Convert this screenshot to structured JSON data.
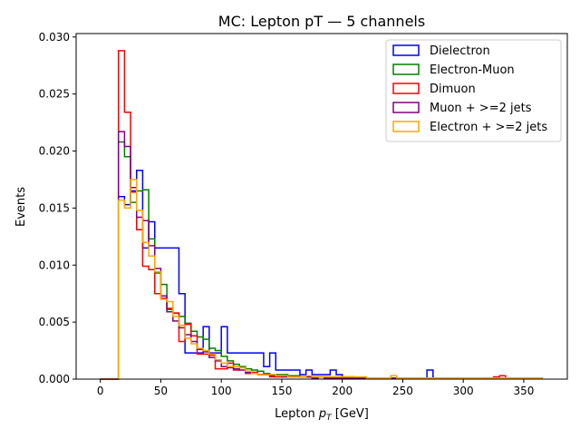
{
  "chart_data": {
    "type": "line",
    "style": "step-histogram",
    "title": "MC: Lepton pT — 5 channels",
    "xlabel_main": "Lepton ",
    "xlabel_p": "p",
    "xlabel_sub": "T",
    "xlabel_unit": " [GeV]",
    "ylabel": "Events",
    "xlim": [
      -20,
      386
    ],
    "ylim": [
      0,
      0.0303
    ],
    "xticks": [
      0,
      50,
      100,
      150,
      200,
      250,
      300,
      350
    ],
    "xtick_labels": [
      "0",
      "50",
      "100",
      "150",
      "200",
      "250",
      "300",
      "350"
    ],
    "yticks": [
      0,
      0.005,
      0.01,
      0.015,
      0.02,
      0.025,
      0.03
    ],
    "ytick_labels": [
      "0.000",
      "0.005",
      "0.010",
      "0.015",
      "0.020",
      "0.025",
      "0.030"
    ],
    "grid": false,
    "legend_position": "top-right",
    "bin_edges": [
      0,
      5,
      10,
      15,
      20,
      25,
      30,
      35,
      40,
      45,
      50,
      55,
      60,
      65,
      70,
      75,
      80,
      85,
      90,
      95,
      100,
      105,
      110,
      115,
      120,
      125,
      130,
      135,
      140,
      145,
      150,
      155,
      160,
      165,
      170,
      175,
      180,
      185,
      190,
      195,
      200,
      205,
      210,
      215,
      220,
      225,
      230,
      235,
      240,
      245,
      250,
      255,
      260,
      265,
      270,
      275,
      280,
      285,
      290,
      295,
      300,
      305,
      310,
      315,
      320,
      325,
      330,
      335,
      340,
      345,
      350,
      355,
      360,
      365
    ],
    "series": [
      {
        "name": "Dielectron",
        "color": "#0000ff",
        "values": [
          0,
          0,
          0,
          0.016,
          0.0153,
          0.0165,
          0.0183,
          0.0115,
          0.0138,
          0.0115,
          0.0115,
          0.0115,
          0.0115,
          0.0075,
          0.0023,
          0.0023,
          0.0023,
          0.0046,
          0.0023,
          0.0023,
          0.0046,
          0.0023,
          0.0023,
          0.0023,
          0.0023,
          0.0023,
          0.0023,
          0.0011,
          0.0023,
          0.0008,
          0.0008,
          0.0008,
          0.0008,
          0.0004,
          0.0008,
          0.0004,
          0.0004,
          0.0004,
          0.0008,
          0.0004,
          0.0001,
          0.0001,
          0.0001,
          0.0001,
          0.0001,
          0.0001,
          0.0001,
          0.0001,
          0.0001,
          0.0001,
          0.0001,
          0.0001,
          0.0001,
          0.0001,
          0.0008,
          0.0001,
          0.0001,
          0.0001,
          0.0001,
          0.0001,
          0.0001,
          0.0001,
          0.0001,
          0.0001,
          0.0001,
          0.0001,
          0.0001,
          0.0001,
          0.0001,
          0.0001,
          0.0001,
          0.0001,
          0.0001
        ]
      },
      {
        "name": "Electron-Muon",
        "color": "#008000",
        "values": [
          0,
          0,
          0,
          0.0208,
          0.0195,
          0.0155,
          0.0165,
          0.0166,
          0.0123,
          0.0093,
          0.0083,
          0.0061,
          0.0058,
          0.0055,
          0.0049,
          0.0042,
          0.0037,
          0.0035,
          0.0027,
          0.0025,
          0.002,
          0.0016,
          0.0013,
          0.0011,
          0.0009,
          0.0008,
          0.0007,
          0.0005,
          0.0004,
          0.0004,
          0.0004,
          0.0003,
          0.0003,
          0.0002,
          0.0002,
          0.0002,
          0.0002,
          0.0002,
          0.0002,
          0.0002,
          0.0002,
          0.0002,
          0.0001,
          0.0001,
          0.0001,
          0.0001,
          0.0001,
          0.0001,
          0.0001,
          0.0001,
          0.0001,
          0.0001,
          0.0001,
          0.0001,
          0.0001,
          0.0001,
          0.0001,
          0.0001,
          0.0001,
          0.0001,
          0.0001,
          0.0001,
          0.0001,
          0.0001,
          0.0001,
          0.0001,
          0.0001,
          0.0001,
          0.0001,
          0.0001,
          0.0001,
          0.0001,
          0.0001
        ]
      },
      {
        "name": "Dimuon",
        "color": "#ff0000",
        "values": [
          0,
          0,
          0,
          0.0288,
          0.0234,
          0.0164,
          0.0131,
          0.0099,
          0.0096,
          0.0075,
          0.0071,
          0.0062,
          0.0058,
          0.0033,
          0.0048,
          0.0038,
          0.0022,
          0.0022,
          0.0021,
          0.0009,
          0.0009,
          0.0014,
          0.0008,
          0.001,
          0.0005,
          0.0006,
          0.0004,
          0.0004,
          0.0002,
          0.0002,
          0.0003,
          0.0002,
          0.0002,
          0.0002,
          0.0002,
          0.0002,
          0.0002,
          0.0002,
          0.0001,
          0.0001,
          0.0001,
          0.0001,
          0.0001,
          0.0001,
          0.0001,
          0.0001,
          0.0001,
          0.0001,
          0.0001,
          0.0001,
          0.0001,
          0.0001,
          0.0001,
          0.0001,
          0.0001,
          0.0001,
          0.0001,
          0.0001,
          0.0001,
          0.0001,
          0.0001,
          0.0001,
          0.0001,
          0.0001,
          0.0001,
          0.0002,
          0.0003,
          0.0001,
          0.0001,
          0.0001,
          0.0001,
          0.0001,
          0.0001
        ]
      },
      {
        "name": "Muon + >=2 jets",
        "color": "#800080",
        "values": [
          0,
          0,
          0,
          0.0217,
          0.0204,
          0.0168,
          0.0142,
          0.0139,
          0.0117,
          0.0097,
          0.0073,
          0.0059,
          0.0051,
          0.0045,
          0.0039,
          0.0033,
          0.0026,
          0.0024,
          0.0019,
          0.0016,
          0.0011,
          0.001,
          0.0009,
          0.0008,
          0.0006,
          0.0005,
          0.0004,
          0.0004,
          0.0003,
          0.0003,
          0.0002,
          0.0002,
          0.0002,
          0.0002,
          0.0002,
          0.0001,
          0.0002,
          0.0001,
          0.0001,
          0.0001,
          0.0001,
          0.0001,
          0.0001,
          0.0001,
          0.0001,
          0.0001,
          0.0001,
          0.0001,
          0.0001,
          0.0001,
          0.0001,
          0.0001,
          0.0001,
          0.0001,
          0.0001,
          0.0001,
          0.0001,
          0.0001,
          0.0001,
          0.0001,
          0.0001,
          0.0001,
          0.0001,
          0.0001,
          0.0001,
          0.0001,
          0.0001,
          0.0001,
          0.0001,
          0.0001,
          0.0001,
          0.0001,
          0.0001
        ]
      },
      {
        "name": "Electron + >=2 jets",
        "color": "#ffa500",
        "values": [
          0,
          0,
          0,
          0.0157,
          0.015,
          0.0175,
          0.0148,
          0.012,
          0.0108,
          0.0094,
          0.007,
          0.0068,
          0.0055,
          0.0047,
          0.0036,
          0.0031,
          0.0027,
          0.0025,
          0.0022,
          0.0017,
          0.0014,
          0.0011,
          0.0011,
          0.001,
          0.0007,
          0.0005,
          0.0004,
          0.0004,
          0.0004,
          0.0003,
          0.0003,
          0.0002,
          0.0002,
          0.0002,
          0.0003,
          0.0002,
          0.0002,
          0.0002,
          0.0002,
          0.0002,
          0.0002,
          0.0002,
          0.0002,
          0.0002,
          0.0001,
          0.0001,
          0.0001,
          0.0001,
          0.0003,
          0.0001,
          0.0001,
          0.0001,
          0.0001,
          0.0001,
          0.0001,
          0.0001,
          0.0001,
          0.0001,
          0.0001,
          0.0001,
          0.0001,
          0.0001,
          0.0001,
          0.0001,
          0.0001,
          0.0001,
          0.0001,
          0.0001,
          0.0001,
          0.0001,
          0.0001,
          0.0001,
          0.0001
        ]
      }
    ]
  }
}
